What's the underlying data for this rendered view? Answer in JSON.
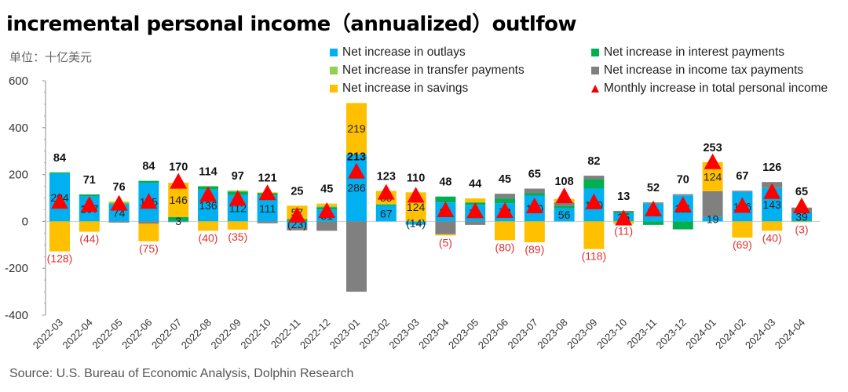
{
  "title": "incremental personal income（annualized）outlfow",
  "unit": "单位：十亿美元",
  "source": "Source: U.S. Bureau of Economic Analysis, Dolphin Research",
  "chart_data": {
    "type": "bar",
    "stacked": true,
    "title": "incremental personal income（annualized）outlfow",
    "ylim": [
      -400,
      600
    ],
    "yticks": [
      "600",
      "400",
      "200",
      "0",
      "-200",
      "-400"
    ],
    "legend_position": "top-right",
    "categories": [
      "2022-03",
      "2022-04",
      "2022-05",
      "2022-06",
      "2022-07",
      "2022-08",
      "2022-09",
      "2022-10",
      "2022-11",
      "2022-12",
      "2023-01",
      "2023-02",
      "2023-03",
      "2023-04",
      "2023-05",
      "2023-06",
      "2023-07",
      "2023-08",
      "2023-09",
      "2023-10",
      "2023-11",
      "2023-12",
      "2024-01",
      "2024-02",
      "2024-03",
      "2024-04"
    ],
    "series": [
      {
        "name": "Net increase in outlays",
        "color": "#00b0f0",
        "values": [
          204,
          107,
          74,
          165,
          3,
          136,
          112,
          111,
          -23,
          51,
          286,
          67,
          -14,
          81,
          71,
          78,
          110,
          56,
          140,
          35,
          76,
          111,
          19,
          126,
          143,
          39
        ]
      },
      {
        "name": "Net increase in interest payments",
        "color": "#00b050",
        "values": [
          5,
          8,
          3,
          8,
          16,
          14,
          15,
          10,
          10,
          10,
          0,
          5,
          0,
          25,
          10,
          20,
          10,
          10,
          40,
          5,
          -15,
          -34,
          0,
          0,
          0,
          0
        ]
      },
      {
        "name": "Net increase in transfer payments",
        "color": "#92d050",
        "values": [
          0,
          0,
          3,
          0,
          0,
          0,
          5,
          0,
          0,
          5,
          0,
          3,
          0,
          0,
          0,
          0,
          0,
          0,
          0,
          0,
          0,
          0,
          0,
          0,
          0,
          0
        ]
      },
      {
        "name": "Net increase in income tax payments",
        "color": "#808080",
        "values": [
          0,
          0,
          -5,
          -10,
          -3,
          0,
          0,
          -8,
          -15,
          -40,
          -300,
          0,
          0,
          -55,
          -15,
          20,
          20,
          15,
          15,
          5,
          5,
          5,
          110,
          5,
          25,
          20
        ]
      },
      {
        "name": "Net increase in savings",
        "color": "#ffc000",
        "values": [
          -128,
          -44,
          5,
          -75,
          146,
          -40,
          -35,
          3,
          57,
          10,
          219,
          55,
          124,
          -5,
          17,
          -80,
          -89,
          15,
          -118,
          -11,
          0,
          0,
          124,
          -69,
          -40,
          -3
        ]
      },
      {
        "name": "Monthly increase in total personal income",
        "color": "#ff0000",
        "type": "marker",
        "values": [
          84,
          71,
          76,
          84,
          170,
          114,
          97,
          121,
          25,
          45,
          213,
          123,
          110,
          48,
          44,
          45,
          65,
          108,
          82,
          13,
          52,
          70,
          253,
          67,
          126,
          65
        ]
      }
    ]
  }
}
